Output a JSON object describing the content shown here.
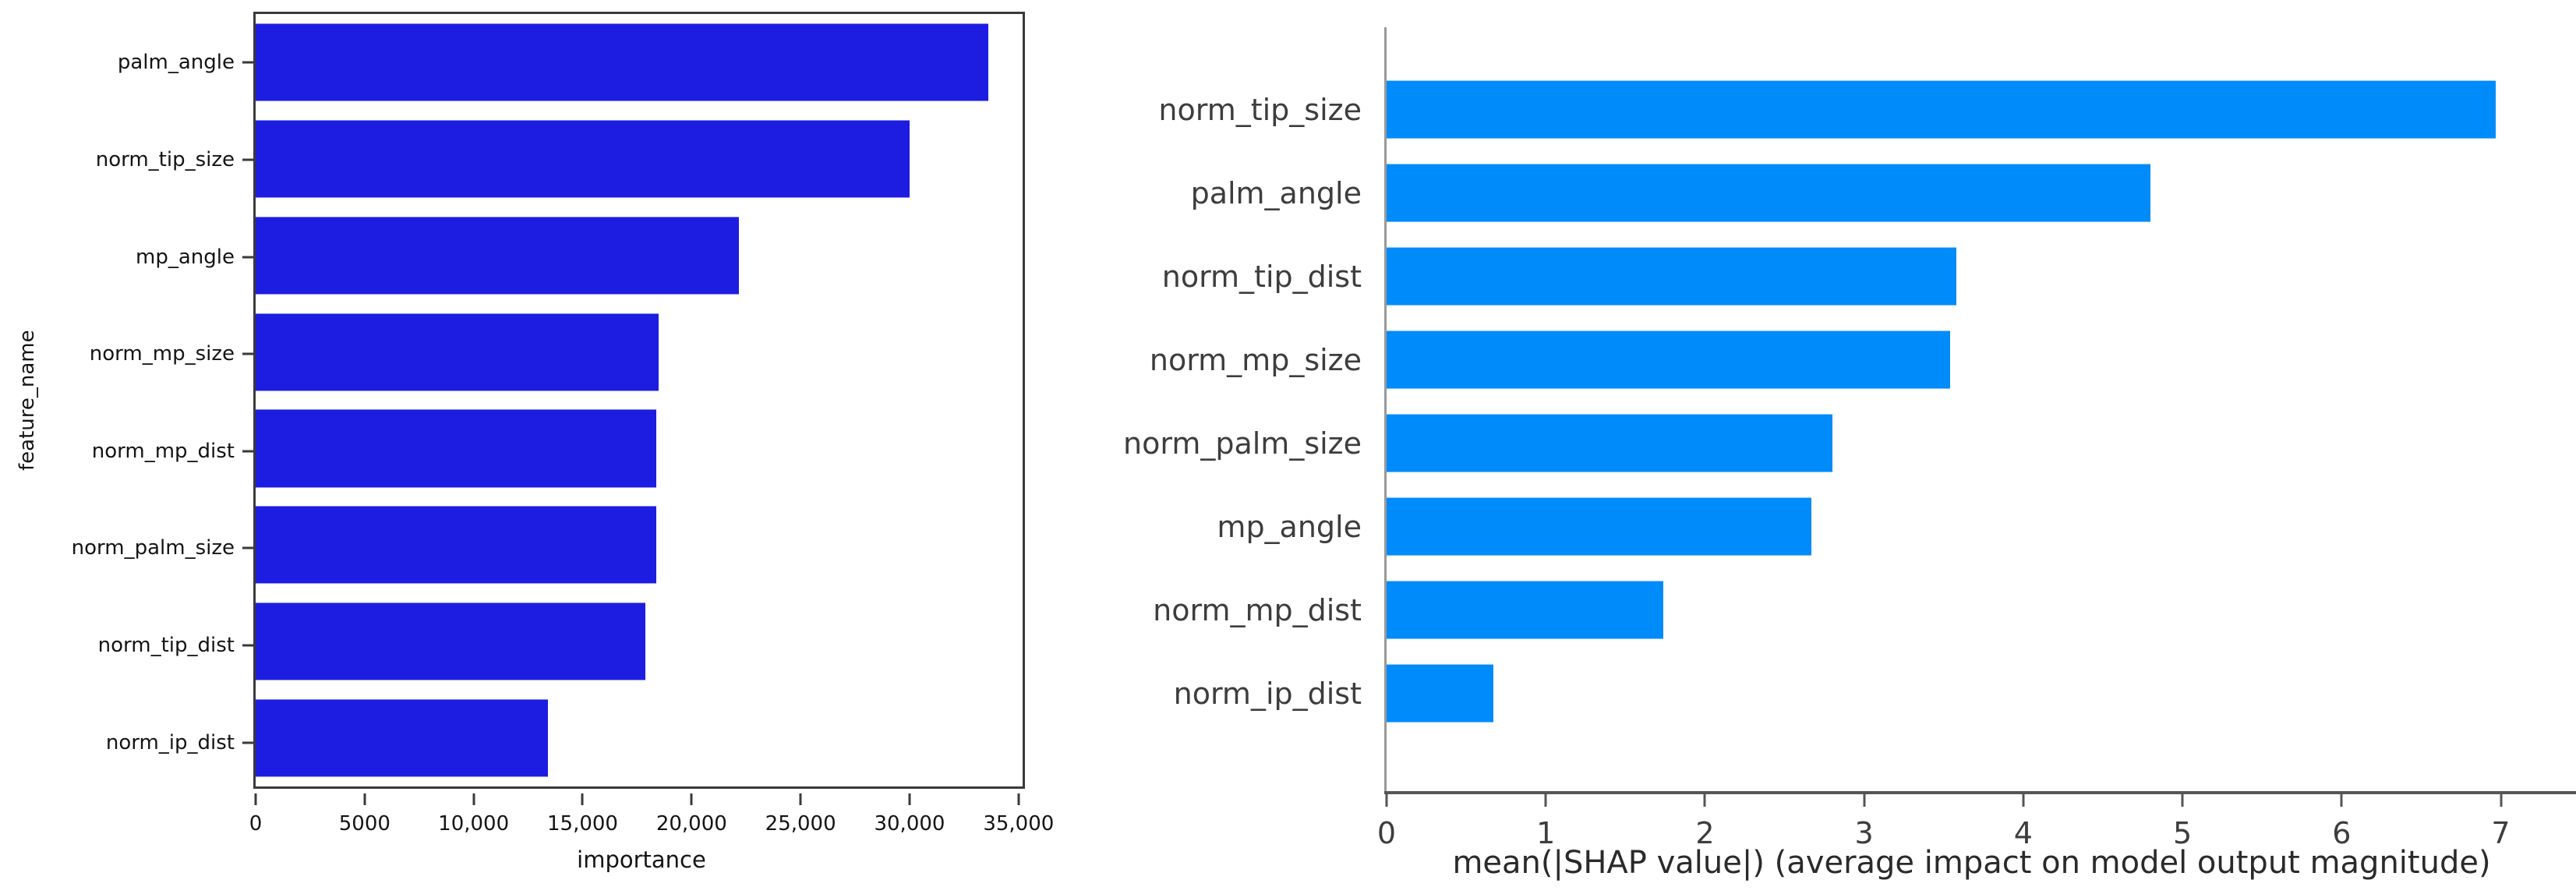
{
  "page": {
    "background": "#ffffff",
    "title": ""
  },
  "chart_data": [
    {
      "id": "feature-importance",
      "type": "bar",
      "orientation": "horizontal",
      "title": "",
      "xlabel": "importance",
      "ylabel": "feature_name",
      "categories": [
        "palm_angle",
        "norm_tip_size",
        "mp_angle",
        "norm_mp_size",
        "norm_mp_dist",
        "norm_palm_size",
        "norm_tip_dist",
        "norm_ip_dist"
      ],
      "values": [
        33800,
        30200,
        22300,
        18600,
        18500,
        18500,
        18000,
        13500
      ],
      "xlim": [
        0,
        35400
      ],
      "xticks": [
        {
          "value": 0,
          "label": "0"
        },
        {
          "value": 5000,
          "label": "5000"
        },
        {
          "value": 10000,
          "label": "10,000"
        },
        {
          "value": 15000,
          "label": "15,000"
        },
        {
          "value": 20000,
          "label": "20,000"
        },
        {
          "value": 25000,
          "label": "25,000"
        },
        {
          "value": 30000,
          "label": "30,000"
        },
        {
          "value": 35000,
          "label": "35,000"
        }
      ],
      "bar_color": "#1d1de1",
      "bar_height_frac": 0.8,
      "frame": "box",
      "axis_color": "#3a3a3a",
      "tick_color": "#3a3a3a",
      "tick_label_color": "#141414",
      "label_color": "#141414",
      "grid": false,
      "legend_position": "none"
    },
    {
      "id": "shap-summary-bar",
      "type": "bar",
      "orientation": "horizontal",
      "title": "",
      "xlabel": "mean(|SHAP value|) (average impact on model output magnitude)",
      "ylabel": "",
      "categories": [
        "norm_tip_size",
        "palm_angle",
        "norm_tip_dist",
        "norm_mp_size",
        "norm_palm_size",
        "mp_angle",
        "norm_mp_dist",
        "norm_ip_dist"
      ],
      "values": [
        6.97,
        4.8,
        3.58,
        3.54,
        2.8,
        2.67,
        1.74,
        0.67
      ],
      "xlim": [
        0,
        7.35
      ],
      "xticks": [
        {
          "value": 0,
          "label": "0"
        },
        {
          "value": 1,
          "label": "1"
        },
        {
          "value": 2,
          "label": "2"
        },
        {
          "value": 3,
          "label": "3"
        },
        {
          "value": 4,
          "label": "4"
        },
        {
          "value": 5,
          "label": "5"
        },
        {
          "value": 6,
          "label": "6"
        },
        {
          "value": 7,
          "label": "7"
        }
      ],
      "bar_color": "#008bfb",
      "bar_height_frac": 0.7,
      "frame": "left-bottom",
      "spine_color": "#999999",
      "bottom_spine_color": "#555555",
      "tick_color": "#555555",
      "tick_label_color": "#3d3d3d",
      "label_color": "#3d3d3d",
      "grid": false,
      "legend_position": "none"
    }
  ]
}
